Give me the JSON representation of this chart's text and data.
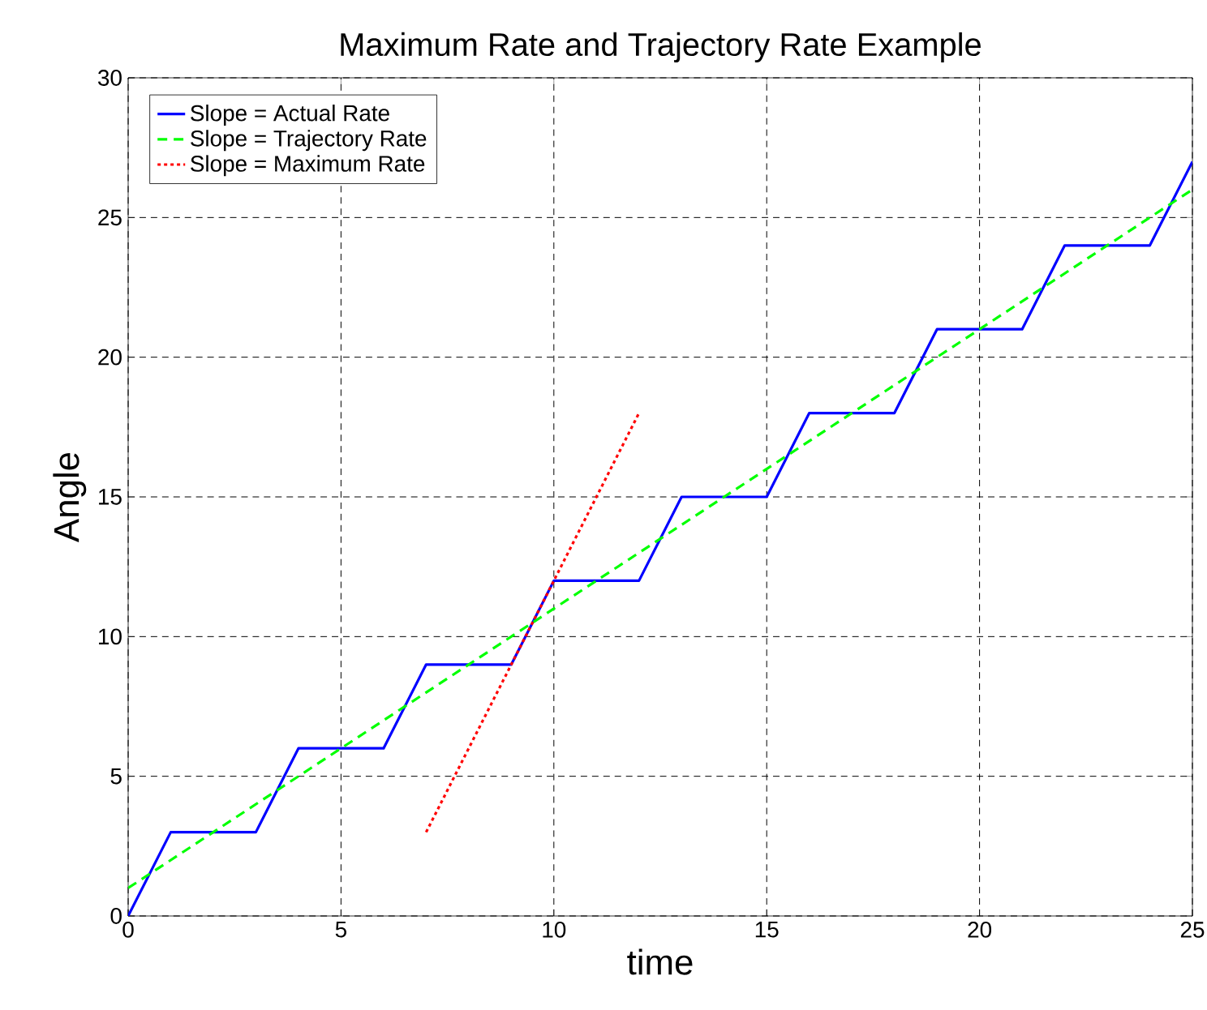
{
  "chart_data": {
    "type": "line",
    "title": "Maximum Rate and Trajectory Rate Example",
    "xlabel": "time",
    "ylabel": "Angle",
    "xlim": [
      0,
      25
    ],
    "xticks": [
      0,
      5,
      10,
      15,
      20,
      25
    ],
    "ylim": [
      0,
      30
    ],
    "yticks": [
      0,
      5,
      10,
      15,
      20,
      25,
      30
    ],
    "grid": true,
    "legend": "top left",
    "series": [
      {
        "name": "Slope = Actual Rate",
        "color": "#0000ff",
        "line_style": "solid",
        "x": [
          0,
          1,
          3,
          4,
          6,
          7,
          9,
          10,
          12,
          13,
          15,
          16,
          18,
          19,
          21,
          22,
          24,
          25
        ],
        "values": [
          0,
          3,
          3,
          6,
          6,
          9,
          9,
          12,
          12,
          15,
          15,
          18,
          18,
          21,
          21,
          24,
          24,
          27
        ]
      },
      {
        "name": "Slope = Trajectory Rate",
        "color": "#00ff00",
        "line_style": "dashed",
        "x": [
          0,
          25
        ],
        "values": [
          1,
          26
        ]
      },
      {
        "name": "Slope = Maximum Rate",
        "color": "#ff0000",
        "line_style": "dotted",
        "x": [
          7,
          12
        ],
        "values": [
          3,
          18
        ]
      }
    ]
  }
}
